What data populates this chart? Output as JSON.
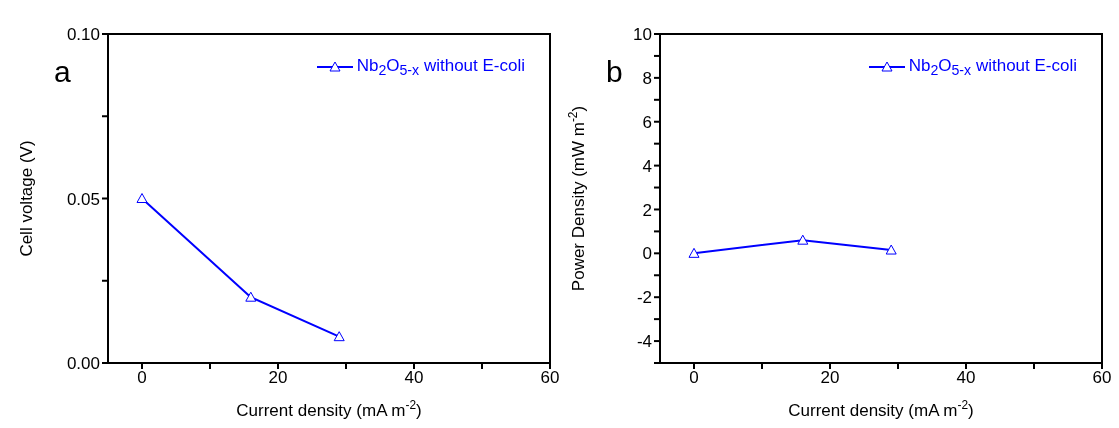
{
  "chart_data": [
    {
      "type": "line",
      "xlabel": "Current density (mA m$^{-2}$)",
      "ylabel": "Cell voltage (V)",
      "annotations": [
        "a"
      ],
      "xlim": [
        -5,
        60
      ],
      "xticks": [
        0,
        {
          "value": 10,
          "label": null
        },
        20,
        {
          "value": 30,
          "label": null
        },
        40,
        {
          "value": 50,
          "label": null
        },
        60
      ],
      "ylim": [
        0,
        0.1
      ],
      "yticks": [
        {
          "value": 0,
          "label": "0.00"
        },
        {
          "value": 0.025,
          "label": null
        },
        0.05,
        {
          "value": 0.075,
          "label": null
        },
        {
          "value": 0.1,
          "label": "0.10"
        }
      ],
      "x": [
        0,
        16,
        29
      ],
      "series": [
        {
          "name": "Nb$_{2}$O$_{5-x}$ without E-coli",
          "color": "#0000ff",
          "values": [
            0.05,
            0.02,
            0.008
          ]
        }
      ],
      "marker": "triangle",
      "line_style": "solid",
      "legend": "top right",
      "grid": false
    },
    {
      "type": "line",
      "xlabel": "Current density (mA m$^{-2}$)",
      "ylabel": "Power Density (mW m$^{-2}$)",
      "annotations": [
        "b"
      ],
      "xlim": [
        -5,
        60
      ],
      "xticks": [
        0,
        {
          "value": 10,
          "label": null
        },
        20,
        {
          "value": 30,
          "label": null
        },
        40,
        {
          "value": 50,
          "label": null
        },
        60
      ],
      "ylim": [
        -5,
        10
      ],
      "yticks": [
        {
          "value": -5,
          "label": null
        },
        -4,
        {
          "value": -3,
          "label": null
        },
        -2,
        {
          "value": -1,
          "label": null
        },
        0,
        {
          "value": 1,
          "label": null
        },
        2,
        {
          "value": 3,
          "label": null
        },
        4,
        {
          "value": 5,
          "label": null
        },
        6,
        {
          "value": 7,
          "label": null
        },
        8,
        {
          "value": 9,
          "label": null
        },
        10
      ],
      "x": [
        0,
        16,
        29
      ],
      "series": [
        {
          "name": "Nb$_{2}$O$_{5-x}$ without E-coli",
          "color": "#0000ff",
          "values": [
            0,
            0.6,
            0.15
          ]
        }
      ],
      "marker": "triangle",
      "line_style": "solid",
      "legend": "top right",
      "grid": false
    }
  ]
}
